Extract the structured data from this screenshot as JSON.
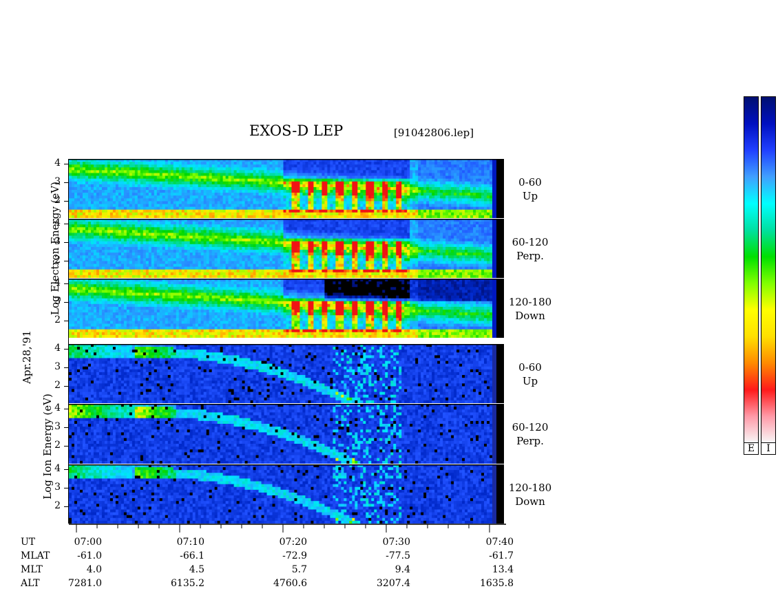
{
  "header": {
    "title": "EXOS-D LEP",
    "file_id": "[91042806.lep]"
  },
  "labels": {
    "electron_ylabel": "Log Electron Energy (eV)",
    "ion_ylabel": "Log Ion Energy (eV)",
    "date": "Apr.28,'91"
  },
  "panels": [
    {
      "group": "electron",
      "angle": "0-60",
      "dir": "Up"
    },
    {
      "group": "electron",
      "angle": "60-120",
      "dir": "Perp."
    },
    {
      "group": "electron",
      "angle": "120-180",
      "dir": "Down"
    },
    {
      "group": "ion",
      "angle": "0-60",
      "dir": "Up"
    },
    {
      "group": "ion",
      "angle": "60-120",
      "dir": "Perp."
    },
    {
      "group": "ion",
      "angle": "120-180",
      "dir": "Down"
    }
  ],
  "colorbar": {
    "labels": [
      "E",
      "I"
    ],
    "colors": [
      "#f8f8f8",
      "#ff9aa8",
      "#ff1a1a",
      "#ff8a00",
      "#ffe000",
      "#ffff00",
      "#80ff00",
      "#00e000",
      "#00e0a0",
      "#00ffff",
      "#40a0ff",
      "#2040ff",
      "#0010c0",
      "#001070"
    ]
  },
  "chart_data": {
    "type": "heatmap",
    "title": "EXOS-D LEP",
    "x_axis": {
      "label": "UT",
      "ticks": [
        "07:00",
        "07:10",
        "07:20",
        "07:30",
        "07:40"
      ]
    },
    "y_axis": {
      "ticks": [
        "4",
        "3",
        "2"
      ],
      "label_electron": "Log Electron Energy (eV)",
      "label_ion": "Log Ion Energy (eV)"
    },
    "orbit_table": [
      {
        "name": "UT",
        "values": [
          "07:00",
          "07:10",
          "07:20",
          "07:30",
          "07:40"
        ]
      },
      {
        "name": "MLAT",
        "values": [
          "-61.0",
          "-66.1",
          "-72.9",
          "-77.5",
          "-61.7"
        ]
      },
      {
        "name": "MLT",
        "values": [
          "4.0",
          "4.5",
          "5.7",
          "9.4",
          "13.4"
        ]
      },
      {
        "name": "ALT",
        "values": [
          "7281.0",
          "6135.2",
          "4760.6",
          "3207.4",
          "1635.8"
        ]
      }
    ]
  }
}
